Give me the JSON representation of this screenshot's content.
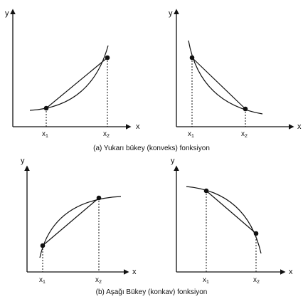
{
  "figure": {
    "panels": [
      {
        "id": "convex-increasing",
        "y_label": "y",
        "x_label": "x",
        "x1_label": "x",
        "x1_sub": "1",
        "x2_label": "x",
        "x2_sub": "2"
      },
      {
        "id": "convex-decreasing",
        "y_label": "y",
        "x_label": "x",
        "x1_label": "x",
        "x1_sub": "1",
        "x2_label": "x",
        "x2_sub": "2"
      },
      {
        "id": "concave-increasing",
        "y_label": "y",
        "x_label": "x",
        "x1_label": "x",
        "x1_sub": "1",
        "x2_label": "x",
        "x2_sub": "2"
      },
      {
        "id": "concave-decreasing",
        "y_label": "y",
        "x_label": "x",
        "x1_label": "x",
        "x1_sub": "1",
        "x2_label": "x",
        "x2_sub": "2"
      }
    ],
    "caption_top": "(a) Yukarı bükey (konveks) fonksiyon",
    "caption_bottom": "(b) Aşağı Bükey (konkav) fonksiyon",
    "colors": {
      "ink": "#111111",
      "background": "#ffffff"
    }
  }
}
